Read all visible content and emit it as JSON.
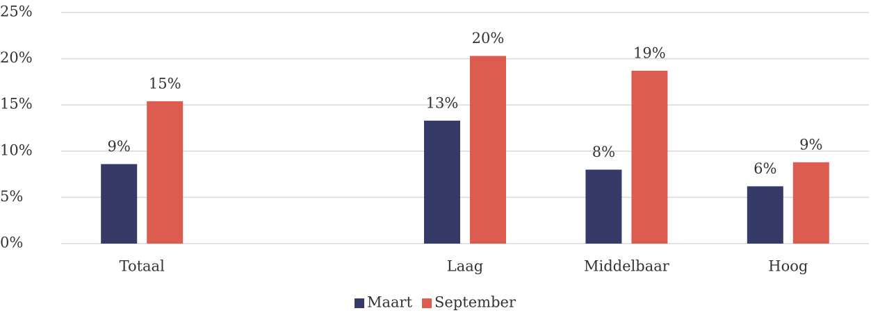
{
  "chart_data": {
    "type": "bar",
    "categories": [
      "Totaal",
      null,
      "Laag",
      "Middelbaar",
      "Hoog"
    ],
    "series": [
      {
        "name": "Maart",
        "color": "#363a66",
        "values": [
          8.6,
          null,
          13.3,
          8.0,
          6.2
        ],
        "value_labels": [
          "9%",
          null,
          "13%",
          "8%",
          "6%"
        ]
      },
      {
        "name": "September",
        "color": "#dd5c50",
        "values": [
          15.4,
          null,
          20.3,
          18.7,
          8.8
        ],
        "value_labels": [
          "15%",
          null,
          "20%",
          "19%",
          "9%"
        ]
      }
    ],
    "ylim": [
      0,
      25
    ],
    "yticks": [
      {
        "value": 0,
        "label": "0%"
      },
      {
        "value": 5,
        "label": "5%"
      },
      {
        "value": 10,
        "label": "10%"
      },
      {
        "value": 15,
        "label": "15%"
      },
      {
        "value": 20,
        "label": "20%"
      },
      {
        "value": 25,
        "label": "25%"
      }
    ],
    "grid": true,
    "legend": "bottom"
  }
}
